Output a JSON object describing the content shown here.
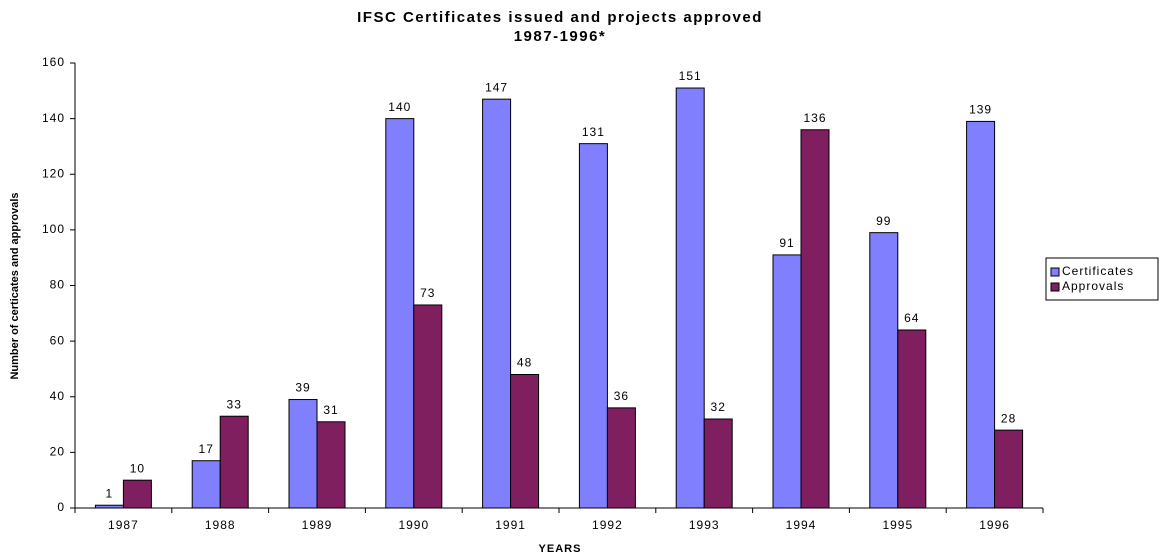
{
  "chart_data": {
    "type": "bar",
    "title": "IFSC Certificates issued and projects approved",
    "subtitle": "1987-1996*",
    "x_label": "YEARS",
    "y_label": "Number of certicates and approvals",
    "categories": [
      "1987",
      "1988",
      "1989",
      "1990",
      "1991",
      "1992",
      "1993",
      "1994",
      "1995",
      "1996"
    ],
    "series": [
      {
        "name": "Certificates",
        "color": "#8080ff",
        "values": [
          1,
          17,
          39,
          140,
          147,
          131,
          151,
          91,
          99,
          139
        ]
      },
      {
        "name": "Approvals",
        "color": "#801f60",
        "values": [
          10,
          33,
          31,
          73,
          48,
          36,
          32,
          136,
          64,
          28
        ]
      }
    ],
    "ylim": [
      0,
      160
    ],
    "yticks": [
      0,
      20,
      40,
      60,
      80,
      100,
      120,
      140,
      160
    ],
    "legend": "right"
  }
}
